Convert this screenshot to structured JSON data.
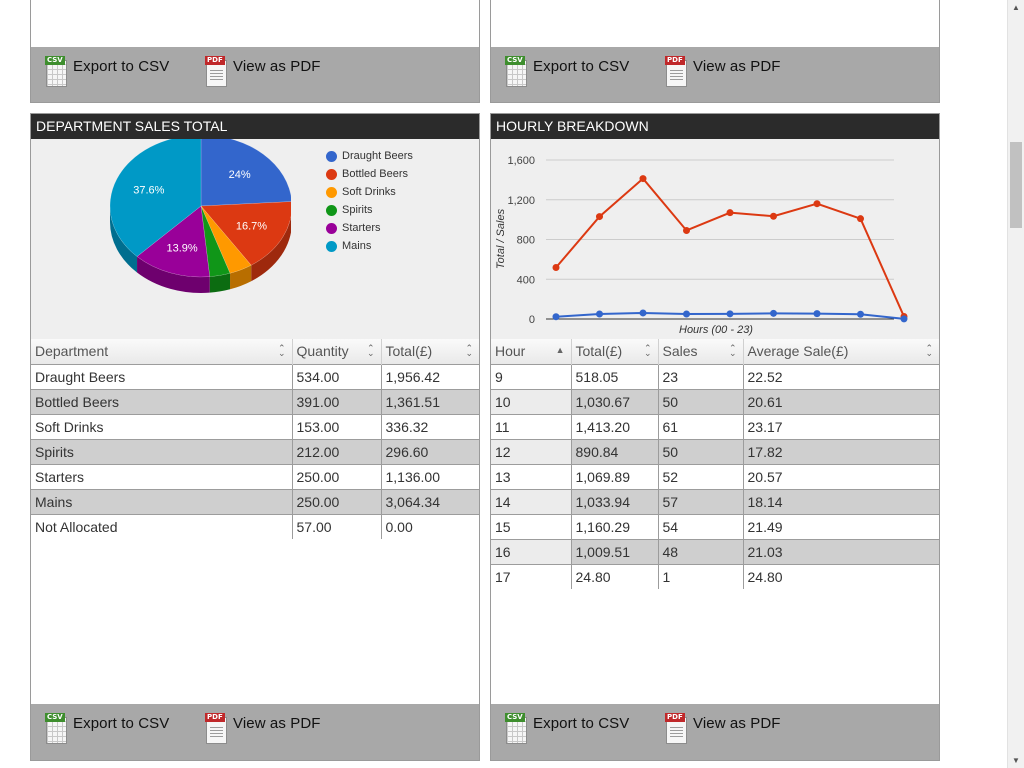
{
  "footer": {
    "export_csv": "Export to CSV",
    "view_pdf": "View as PDF",
    "csv_tag": "CSV",
    "pdf_tag": "PDF"
  },
  "department": {
    "title": "DEPARTMENT SALES TOTAL",
    "legend": [
      "Draught Beers",
      "Bottled Beers",
      "Soft Drinks",
      "Spirits",
      "Starters",
      "Mains"
    ],
    "colors": [
      "#3366cc",
      "#dc3912",
      "#ff9900",
      "#109618",
      "#990099",
      "#0099c6"
    ],
    "slice_labels": [
      "24%",
      "16.7%",
      "",
      "",
      "13.9%",
      "37.6%"
    ],
    "columns": [
      "Department",
      "Quantity",
      "Total(£)"
    ],
    "rows": [
      [
        "Draught Beers",
        "534.00",
        "1,956.42"
      ],
      [
        "Bottled Beers",
        "391.00",
        "1,361.51"
      ],
      [
        "Soft Drinks",
        "153.00",
        "336.32"
      ],
      [
        "Spirits",
        "212.00",
        "296.60"
      ],
      [
        "Starters",
        "250.00",
        "1,136.00"
      ],
      [
        "Mains",
        "250.00",
        "3,064.34"
      ],
      [
        "Not Allocated",
        "57.00",
        "0.00"
      ]
    ]
  },
  "hourly": {
    "title": "HOURLY BREAKDOWN",
    "columns": [
      "Hour",
      "Total(£)",
      "Sales",
      "Average Sale(£)"
    ],
    "rows": [
      [
        "9",
        "518.05",
        "23",
        "22.52"
      ],
      [
        "10",
        "1,030.67",
        "50",
        "20.61"
      ],
      [
        "11",
        "1,413.20",
        "61",
        "23.17"
      ],
      [
        "12",
        "890.84",
        "50",
        "17.82"
      ],
      [
        "13",
        "1,069.89",
        "52",
        "20.57"
      ],
      [
        "14",
        "1,033.94",
        "57",
        "18.14"
      ],
      [
        "15",
        "1,160.29",
        "54",
        "21.49"
      ],
      [
        "16",
        "1,009.51",
        "48",
        "21.03"
      ],
      [
        "17",
        "24.80",
        "1",
        "24.80"
      ]
    ]
  },
  "chart_data": [
    {
      "type": "pie",
      "title": "",
      "categories": [
        "Draught Beers",
        "Bottled Beers",
        "Soft Drinks",
        "Spirits",
        "Starters",
        "Mains"
      ],
      "values": [
        1956.42,
        1361.51,
        336.32,
        296.6,
        1136.0,
        3064.34
      ],
      "legend_position": "right"
    },
    {
      "type": "line",
      "title": "",
      "xlabel": "Hours (00 - 23)",
      "ylabel": "Total / Sales",
      "x": [
        9,
        10,
        11,
        12,
        13,
        14,
        15,
        16,
        17
      ],
      "ylim": [
        0,
        1600
      ],
      "yticks": [
        "0",
        "400",
        "800",
        "1,200",
        "1,600"
      ],
      "series": [
        {
          "values": [
            518.05,
            1030.67,
            1413.2,
            890.84,
            1069.89,
            1033.94,
            1160.29,
            1009.51,
            24.8
          ],
          "color": "#dc3912"
        },
        {
          "values": [
            23,
            50,
            61,
            50,
            52,
            57,
            54,
            48,
            1
          ],
          "color": "#3366cc"
        }
      ],
      "grid": true
    }
  ]
}
